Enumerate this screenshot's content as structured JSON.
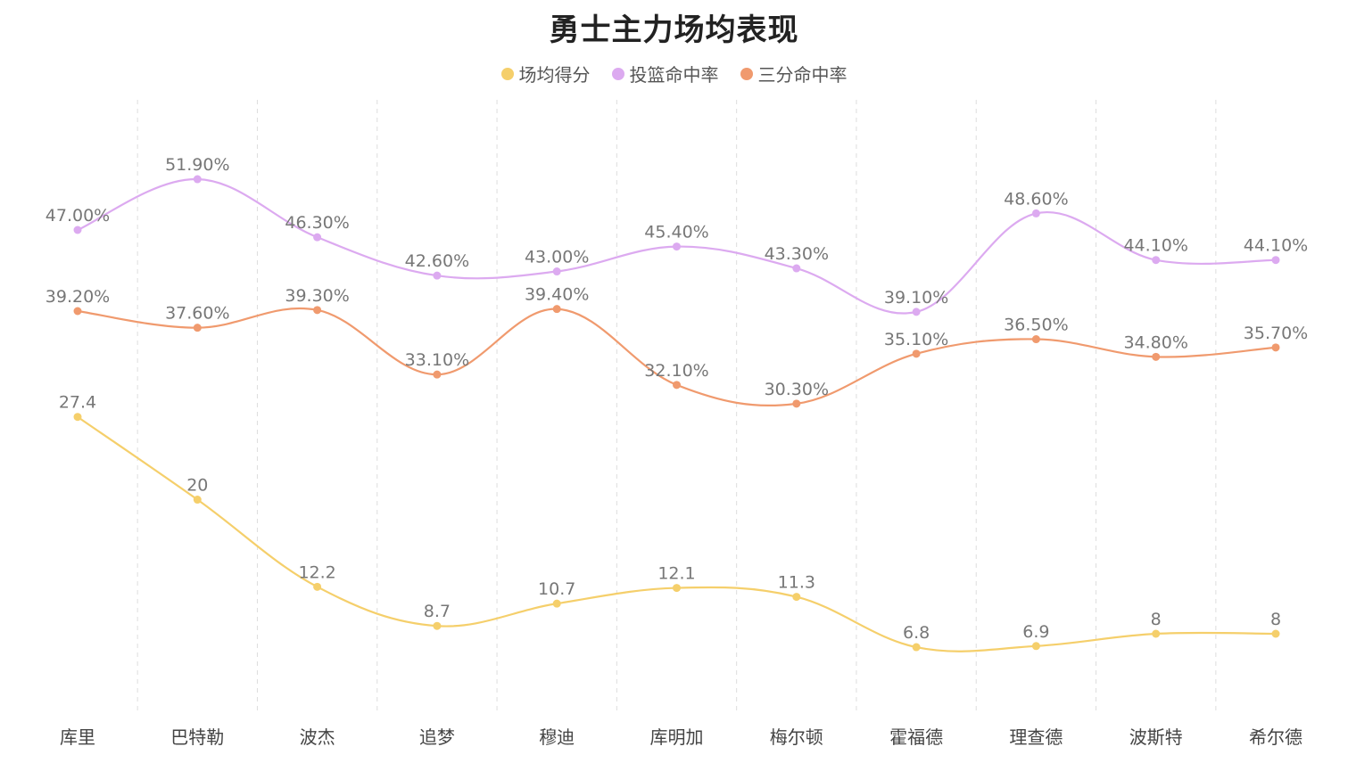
{
  "chart_data": {
    "type": "line",
    "title": "勇士主力场均表现",
    "categories": [
      "库里",
      "巴特勒",
      "波杰",
      "追梦",
      "穆迪",
      "库明加",
      "梅尔顿",
      "霍福德",
      "理查德",
      "波斯特",
      "希尔德"
    ],
    "series": [
      {
        "name": "场均得分",
        "color": "#f5cf6b",
        "values": [
          27.4,
          20,
          12.2,
          8.7,
          10.7,
          12.1,
          11.3,
          6.8,
          6.9,
          8,
          8
        ],
        "labels": [
          "27.4",
          "20",
          "12.2",
          "8.7",
          "10.7",
          "12.1",
          "11.3",
          "6.8",
          "6.9",
          "8",
          "8"
        ]
      },
      {
        "name": "投篮命中率",
        "color": "#dcaaf0",
        "values": [
          47.0,
          51.9,
          46.3,
          42.6,
          43.0,
          45.4,
          43.3,
          39.1,
          48.6,
          44.1,
          44.1
        ],
        "labels": [
          "47.00%",
          "51.90%",
          "46.30%",
          "42.60%",
          "43.00%",
          "45.40%",
          "43.30%",
          "39.10%",
          "48.60%",
          "44.10%",
          "44.10%"
        ]
      },
      {
        "name": "三分命中率",
        "color": "#f09a6e",
        "values": [
          39.2,
          37.6,
          39.3,
          33.1,
          39.4,
          32.1,
          30.3,
          35.1,
          36.5,
          34.8,
          35.7
        ],
        "labels": [
          "39.20%",
          "37.60%",
          "39.30%",
          "33.10%",
          "39.40%",
          "32.10%",
          "30.30%",
          "35.10%",
          "36.50%",
          "34.80%",
          "35.70%"
        ]
      }
    ],
    "grid": "vertical dashed",
    "legend_position": "top-center"
  }
}
